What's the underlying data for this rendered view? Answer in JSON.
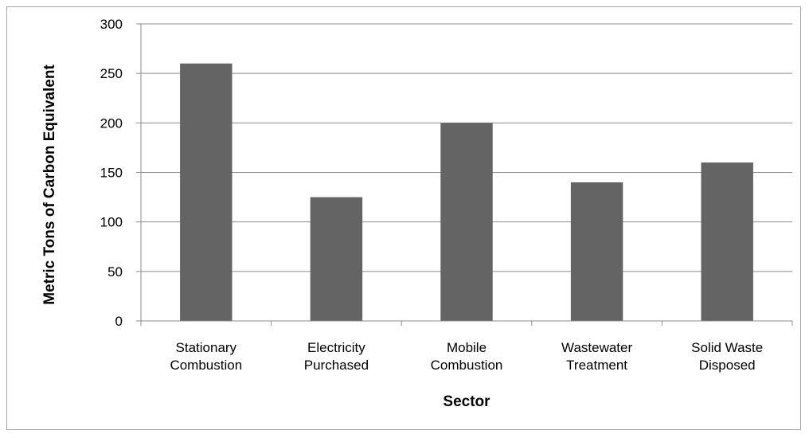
{
  "chart_data": {
    "type": "bar",
    "title": "",
    "xlabel": "Sector",
    "ylabel": "Metric Tons of Carbon Equivalent",
    "categories": [
      [
        "Stationary",
        "Combustion"
      ],
      [
        "Electricity",
        "Purchased"
      ],
      [
        "Mobile",
        "Combustion"
      ],
      [
        "Wastewater",
        "Treatment"
      ],
      [
        "Solid Waste",
        "Disposed"
      ]
    ],
    "values": [
      260,
      125,
      200,
      140,
      160
    ],
    "ylim": [
      0,
      300
    ],
    "yticks": [
      "0",
      "50",
      "100",
      "150",
      "200",
      "250",
      "300"
    ],
    "grid": true,
    "legend": "none",
    "colors": {
      "bar": "#646464",
      "grid": "#8c8c8c",
      "axis": "#8c8c8c"
    }
  }
}
